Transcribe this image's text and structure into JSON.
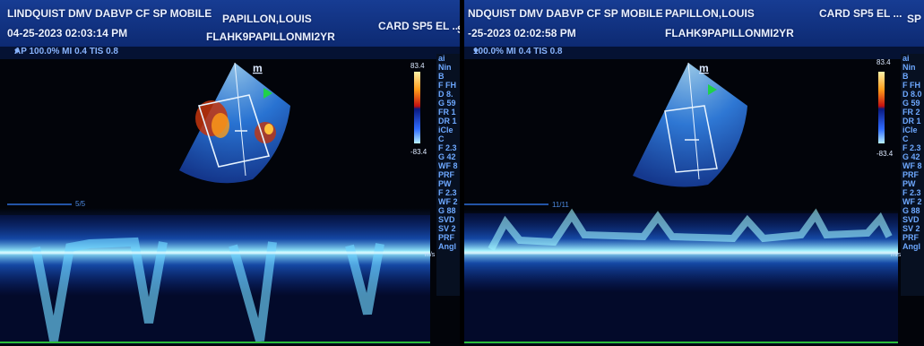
{
  "left_panel": {
    "header": {
      "clinic": "LINDQUIST DMV DABVP CF SP MOBILE",
      "patient": "PAPILLON,LOUIS",
      "patient_id": "FLAHK9PAPILLONMI2YR",
      "datetime": "04-25-2023 02:03:14 PM",
      "preset": "CARD SP5 EL ...",
      "sp_cut": "SP"
    },
    "subline": "AP 100.0% MI 0.4 TIS 0.8",
    "scale_max": "83.4",
    "scale_min": "-83.4",
    "marker": "m",
    "sweep": "5/5",
    "unit": "m/s",
    "sidebar": [
      "ai",
      "Nin",
      "B",
      "F FH",
      "D 8.",
      "G 59",
      "FR 1",
      "DR 1",
      "iCle",
      "C",
      "F 2.3",
      "G 42",
      "WF 8",
      "PRF",
      "PW",
      "F 2.3",
      "WF 2",
      "G 88",
      "SVD",
      "SV 2",
      "PRF",
      "Angl"
    ]
  },
  "right_panel": {
    "header": {
      "clinic": "NDQUIST DMV DABVP CF SP MOBILE",
      "patient": "PAPILLON,LOUIS",
      "patient_id": "FLAHK9PAPILLONMI2YR",
      "datetime": "-25-2023 02:02:58 PM",
      "preset": "CARD SP5 EL ...",
      "sp_cut": "SP"
    },
    "subline": "100.0% MI 0.4 TIS 0.8",
    "scale_max": "83.4",
    "scale_min": "-83.4",
    "marker": "m",
    "sweep": "11/11",
    "unit": "m/s",
    "sidebar": [
      "ai",
      "Nin",
      "B",
      "F FH",
      "D 8.0",
      "G 59",
      "FR 2",
      "DR 1",
      "iCle",
      "C",
      "F 2.3",
      "G 42",
      "WF 8",
      "PRF",
      "PW",
      "F 2.3",
      "WF 2",
      "G 88",
      "SVD",
      "SV 2",
      "PRF",
      "Angl"
    ]
  },
  "colors": {
    "header_bg": "#173c93",
    "doppler": "#3bd6ff",
    "background": "#02040a"
  }
}
